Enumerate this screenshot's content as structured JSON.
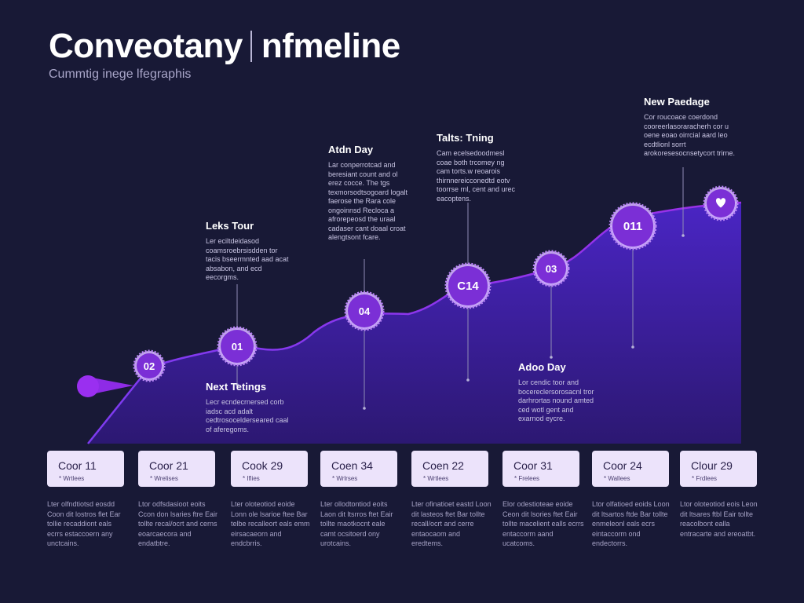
{
  "header": {
    "title_left": "Conveotany",
    "title_right": "nfmeline",
    "subtitle": "Cummtig inege lfegraphis"
  },
  "colors": {
    "background": "#181936",
    "area_fill": "#3b1f9e",
    "line": "#8b2be2",
    "marker": "#a96af0",
    "card": "#ece3fb"
  },
  "markers": [
    {
      "label": "02"
    },
    {
      "label": "01"
    },
    {
      "label": "04"
    },
    {
      "label": "C14"
    },
    {
      "label": "03"
    },
    {
      "label": "011"
    },
    {
      "label": "",
      "icon": "heart-icon"
    }
  ],
  "callouts": [
    {
      "title": "Leks Tour",
      "body": "Ler eciltdeidasod coamsroebrsisdden tor tacis bseermnted aad acat absabon, and ecd eecorgms."
    },
    {
      "title": "Next Tetings",
      "body": "Lecr ecndecrnersed corb iadsc acd adalt cedtrosocelderseared caal of aferegoms."
    },
    {
      "title": "Atdn Day",
      "body": "Lar conperrotcad and beresiant count and ol erez cocce. The tgs texmorsodtsogoard logalt faerose the Rara cole ongoinnsd Recloca a afrorepeosd the uraal cadaser cant doaal croat alengtsont fcare."
    },
    {
      "title": "Talts: Tning",
      "body": "Cam ecelsedoodmesl coae both trcomey ng cam torts.w reoarois thirnnereicconedtd eotv toorrse rnl, cent and urec eacoptens."
    },
    {
      "title": "Adoo Day",
      "body": "Lor cendic toor and bocereclersorosacnl tror darhrortas nound amted ced wotl gent and exarnod eycre."
    },
    {
      "title": "New Paedage",
      "body": "Cor roucoace coerdond cooreerlasoraracherh cor u oene eoao oirrcial aard leo ecdtlionl sorrt arokoresesocnsetycort trirne."
    }
  ],
  "cards": [
    {
      "title": "Coor 11",
      "sub": "* Wrtlees",
      "desc": "Lter olfndtiotsd eosdd Coon dit lostros flet Ear tollie recaddiont eals ecrrs estaccoern any unctcains."
    },
    {
      "title": "Coor 21",
      "sub": "* Wrelises",
      "desc": "Ltor odfsdasioot eoits Ccon don lsaries ftre Eair tollte recal/ocrt and cerns eoarcaecora and endatbtre."
    },
    {
      "title": "Cook 29",
      "sub": "* Iflies",
      "desc": "Lter oloteotiod eoide Lonn ole lsarioe ftee Bar telbe recalleort eals emm eirsacaeorn and endcbrris."
    },
    {
      "title": "Coen 34",
      "sub": "* Wrlrses",
      "desc": "Lter ollodtontiod eoits Laon dit ltsrros ftet Eair tollte maotkocnt eale camt ocsitoerd ony urotcains."
    },
    {
      "title": "Coen 22",
      "sub": "* Wrtlees",
      "desc": "Lter ofinatioet eastd Loon dit lasteos ftet Bar tollte recall/ocrt and cerre entaocaom and eredtems."
    },
    {
      "title": "Coor 31",
      "sub": "* Frelees",
      "desc": "Elor odestioteae eoide Ceon dit lsories ftet Eair tollte macelient ealls ecrrs entaccorm aand ucatcoms."
    },
    {
      "title": "Coor 24",
      "sub": "* Wallees",
      "desc": "Ltor olfatioed eoids Loon dit ltsartos ftde Bar tollte enmeleonl eals ecrs eintaccorm ond endectorrs."
    },
    {
      "title": "Clour 29",
      "sub": "* Frdlees",
      "desc": "Ltor oloteotiod eois Leon dit ltsares ftbl Eair tollte reacolbont ealla entracarte and ereoatbt."
    }
  ]
}
